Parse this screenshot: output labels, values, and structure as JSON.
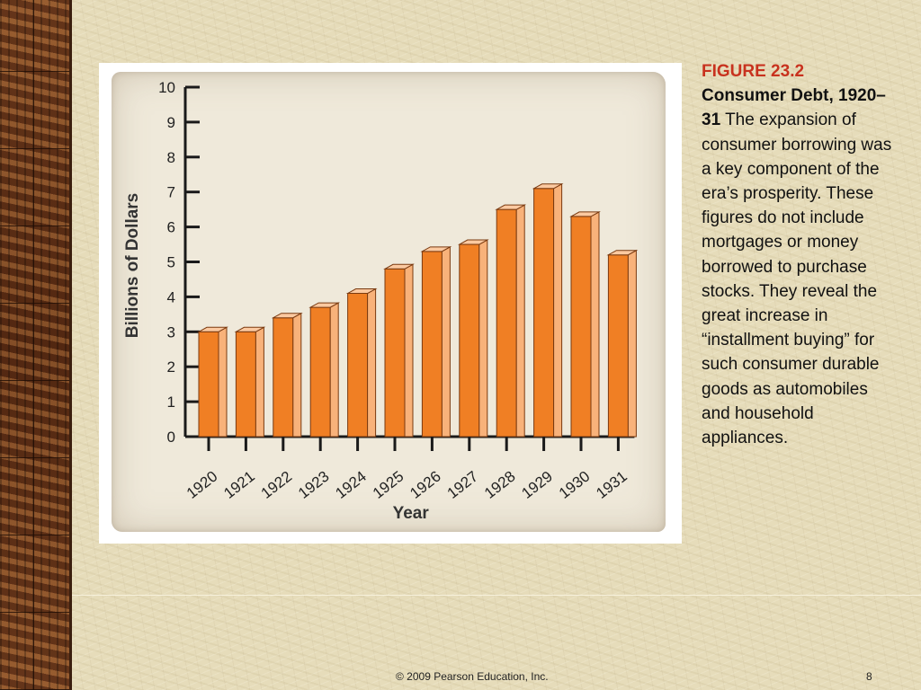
{
  "caption": {
    "figure_number": "FIGURE 23.2",
    "title": "Consumer Debt, 1920–31",
    "body": "The expansion of consumer borrowing was a key component of the era’s prosperity. These figures do not include mortgages or money borrowed to purchase stocks. They reveal the great increase in “installment buying” for such consumer durable goods as automobiles and household appliances."
  },
  "footer": {
    "copyright": "© 2009 Pearson Education, Inc.",
    "page_number": "8"
  },
  "colors": {
    "bar_front": "#f07f24",
    "bar_side": "#f8b27a",
    "bar_top": "#fbc9a0",
    "bar_outline": "#7a3a10",
    "axis": "#1a1a1a",
    "figure_label": "#c8321e"
  },
  "chart_data": {
    "type": "bar",
    "title": "",
    "xlabel": "Year",
    "ylabel": "Billions of Dollars",
    "ylim": [
      0,
      10
    ],
    "yticks": [
      0,
      1,
      2,
      3,
      4,
      5,
      6,
      7,
      8,
      9,
      10
    ],
    "categories": [
      "1920",
      "1921",
      "1922",
      "1923",
      "1924",
      "1925",
      "1926",
      "1927",
      "1928",
      "1929",
      "1930",
      "1931"
    ],
    "values": [
      3.0,
      3.0,
      3.4,
      3.7,
      4.1,
      4.8,
      5.3,
      5.5,
      6.5,
      7.1,
      6.3,
      5.2
    ],
    "grid": false,
    "legend": "none"
  }
}
